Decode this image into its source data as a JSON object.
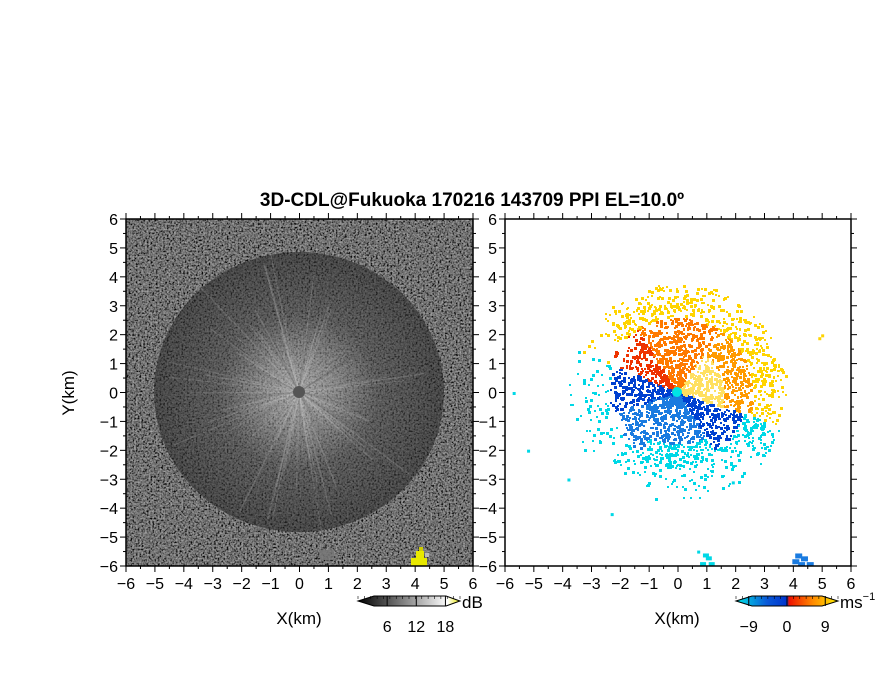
{
  "chart_data": {
    "type": "heatmap",
    "title": "3D-CDL@Fukuoka 170216 143709 PPI EL=10.0º",
    "panels": [
      {
        "name": "reflectivity",
        "xlabel": "X(km)",
        "ylabel": "Y(km)",
        "xlim": [
          -6,
          6
        ],
        "ylim": [
          -6,
          6
        ],
        "xticks": [
          "−6",
          "−5",
          "−4",
          "−3",
          "−2",
          "−1",
          "0",
          "1",
          "2",
          "3",
          "4",
          "5",
          "6"
        ],
        "yticks": [
          "−6",
          "−5",
          "−4",
          "−3",
          "−2",
          "−1",
          "0",
          "1",
          "2",
          "3",
          "4",
          "5",
          "6"
        ],
        "colorbar": {
          "unit": "dB",
          "ticks": [
            "6",
            "12",
            "18"
          ],
          "range": [
            0,
            21
          ],
          "colors": [
            "#000000",
            "#ffffff",
            "#e8e800"
          ]
        }
      },
      {
        "name": "doppler velocity",
        "xlabel": "X(km)",
        "ylabel": "",
        "xlim": [
          -6,
          6
        ],
        "ylim": [
          -6,
          6
        ],
        "xticks": [
          "−6",
          "−5",
          "−4",
          "−3",
          "−2",
          "−1",
          "0",
          "1",
          "2",
          "3",
          "4",
          "5",
          "6"
        ],
        "yticks": [
          "−6",
          "−5",
          "−4",
          "−3",
          "−2",
          "−1",
          "0",
          "1",
          "2",
          "3",
          "4",
          "5",
          "6"
        ],
        "colorbar": {
          "unit": "ms",
          "unit_exp": "−1",
          "ticks": [
            "−9",
            "0",
            "9"
          ],
          "range": [
            -12,
            12
          ],
          "colors": [
            "#00e5e5",
            "#0a5ad8",
            "#0033cc",
            "#ee1100",
            "#ff8800",
            "#ffee00"
          ]
        }
      }
    ]
  }
}
